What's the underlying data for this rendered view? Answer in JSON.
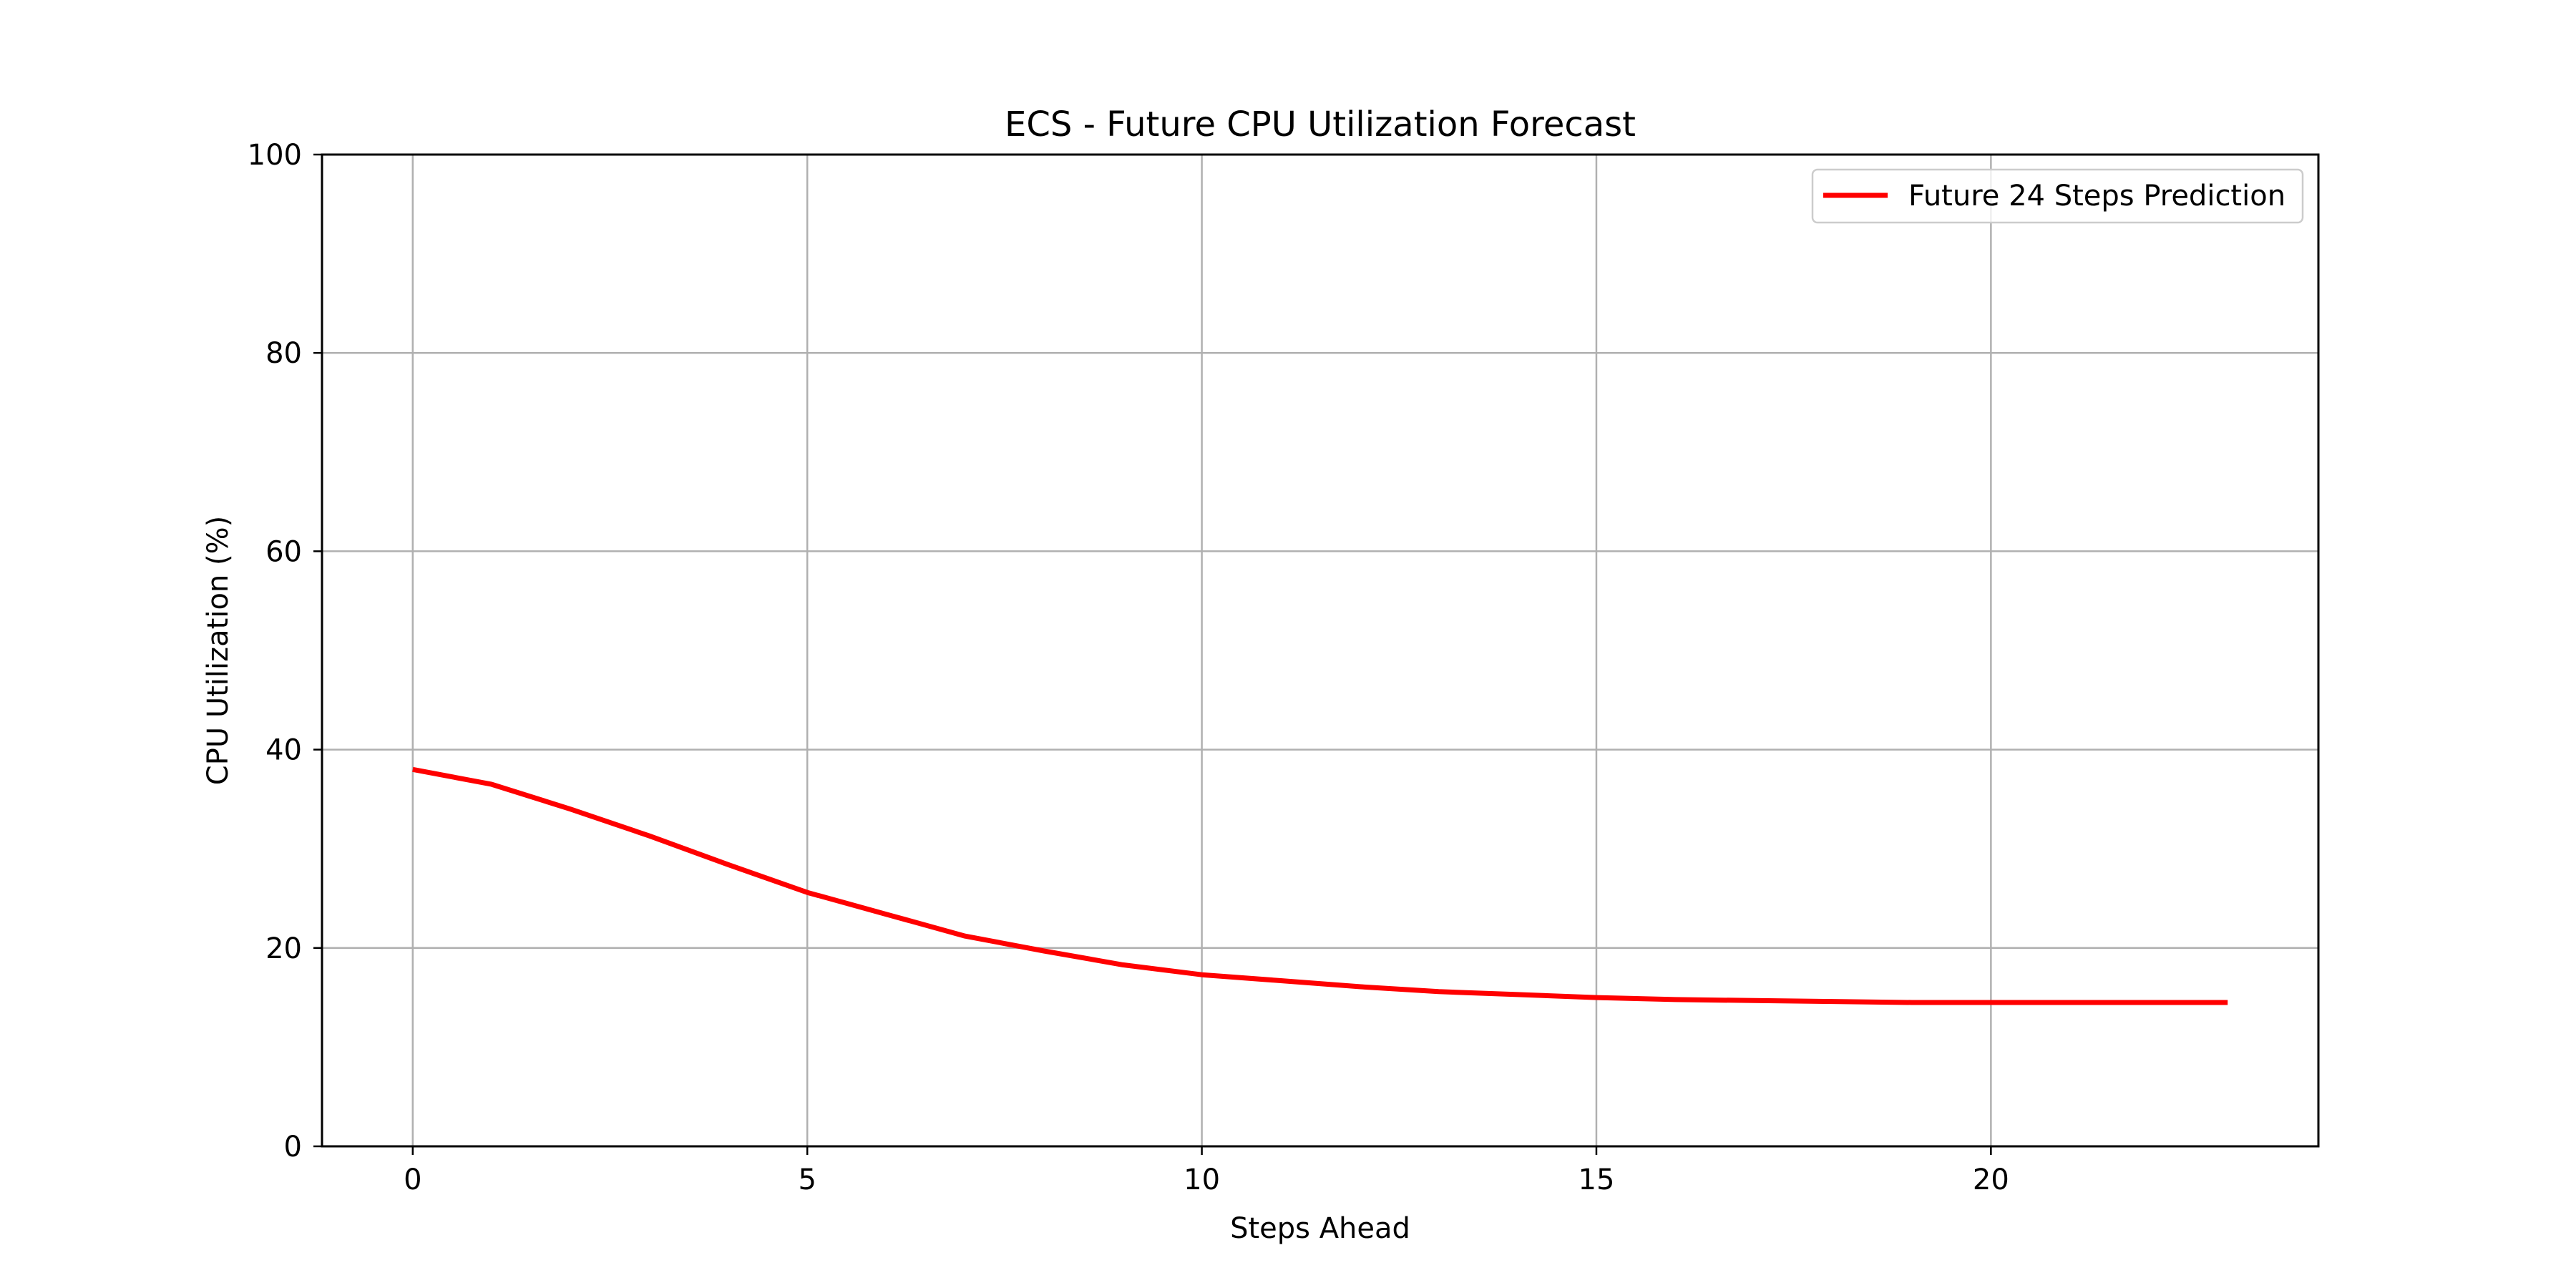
{
  "chart_data": {
    "type": "line",
    "title": "ECS - Future CPU Utilization Forecast",
    "xlabel": "Steps Ahead",
    "ylabel": "CPU Utilization (%)",
    "xlim": [
      -1.15,
      24.15
    ],
    "ylim": [
      0,
      100
    ],
    "x_ticks": [
      0,
      5,
      10,
      15,
      20
    ],
    "y_ticks": [
      0,
      20,
      40,
      60,
      80,
      100
    ],
    "grid": true,
    "legend_position": "top-right",
    "series": [
      {
        "name": "Future 24 Steps Prediction",
        "color": "#ff0000",
        "x": [
          0,
          1,
          2,
          3,
          4,
          5,
          6,
          7,
          8,
          9,
          10,
          11,
          12,
          13,
          14,
          15,
          16,
          17,
          18,
          19,
          20,
          21,
          22,
          23
        ],
        "values": [
          38.0,
          36.5,
          34.0,
          31.3,
          28.4,
          25.6,
          23.4,
          21.2,
          19.7,
          18.3,
          17.3,
          16.7,
          16.1,
          15.6,
          15.3,
          15.0,
          14.8,
          14.7,
          14.6,
          14.5,
          14.5,
          14.5,
          14.5,
          14.5
        ]
      }
    ]
  }
}
